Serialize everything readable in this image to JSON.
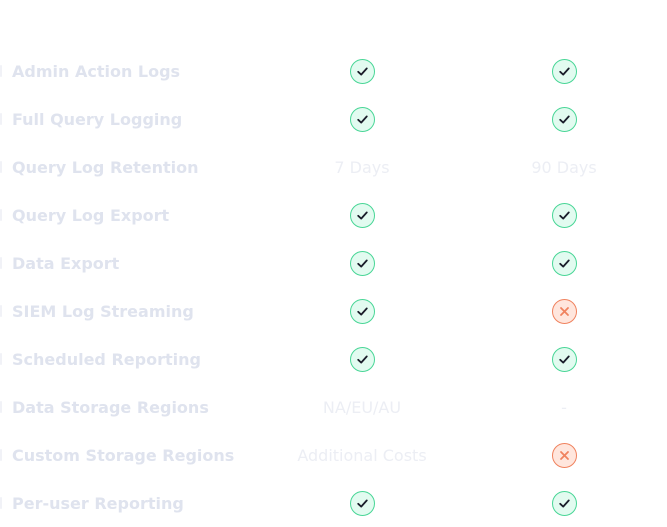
{
  "comparison": {
    "rows": [
      {
        "feature": "Admin Action Logs",
        "plan_a": {
          "type": "icon",
          "icon": "check-icon"
        },
        "plan_b": {
          "type": "icon",
          "icon": "check-icon"
        }
      },
      {
        "feature": "Full Query Logging",
        "plan_a": {
          "type": "icon",
          "icon": "check-icon"
        },
        "plan_b": {
          "type": "icon",
          "icon": "check-icon"
        }
      },
      {
        "feature": "Query Log Retention",
        "plan_a": {
          "type": "text",
          "text": "7 Days"
        },
        "plan_b": {
          "type": "text",
          "text": "90 Days"
        }
      },
      {
        "feature": "Query Log Export",
        "plan_a": {
          "type": "icon",
          "icon": "check-icon"
        },
        "plan_b": {
          "type": "icon",
          "icon": "check-icon"
        }
      },
      {
        "feature": "Data Export",
        "plan_a": {
          "type": "icon",
          "icon": "check-icon"
        },
        "plan_b": {
          "type": "icon",
          "icon": "check-icon"
        }
      },
      {
        "feature": "SIEM Log Streaming",
        "plan_a": {
          "type": "icon",
          "icon": "check-icon"
        },
        "plan_b": {
          "type": "icon",
          "icon": "cross-icon"
        }
      },
      {
        "feature": "Scheduled Reporting",
        "plan_a": {
          "type": "icon",
          "icon": "check-icon"
        },
        "plan_b": {
          "type": "icon",
          "icon": "check-icon"
        }
      },
      {
        "feature": "Data Storage Regions",
        "plan_a": {
          "type": "text",
          "text": "NA/EU/AU"
        },
        "plan_b": {
          "type": "text",
          "text": "-"
        }
      },
      {
        "feature": "Custom Storage Regions",
        "plan_a": {
          "type": "text",
          "text": "Additional Costs"
        },
        "plan_b": {
          "type": "icon",
          "icon": "cross-icon"
        }
      },
      {
        "feature": "Per-user Reporting",
        "plan_a": {
          "type": "icon",
          "icon": "check-icon"
        },
        "plan_b": {
          "type": "icon",
          "icon": "check-icon"
        }
      }
    ]
  },
  "colors": {
    "check_stroke": "#48d696",
    "check_fill": "#e2fbf0",
    "cross_stroke": "#f0825e",
    "cross_fill": "#ffe6dd",
    "feature_text": "#dfe3ee",
    "value_text": "#eceef4"
  }
}
